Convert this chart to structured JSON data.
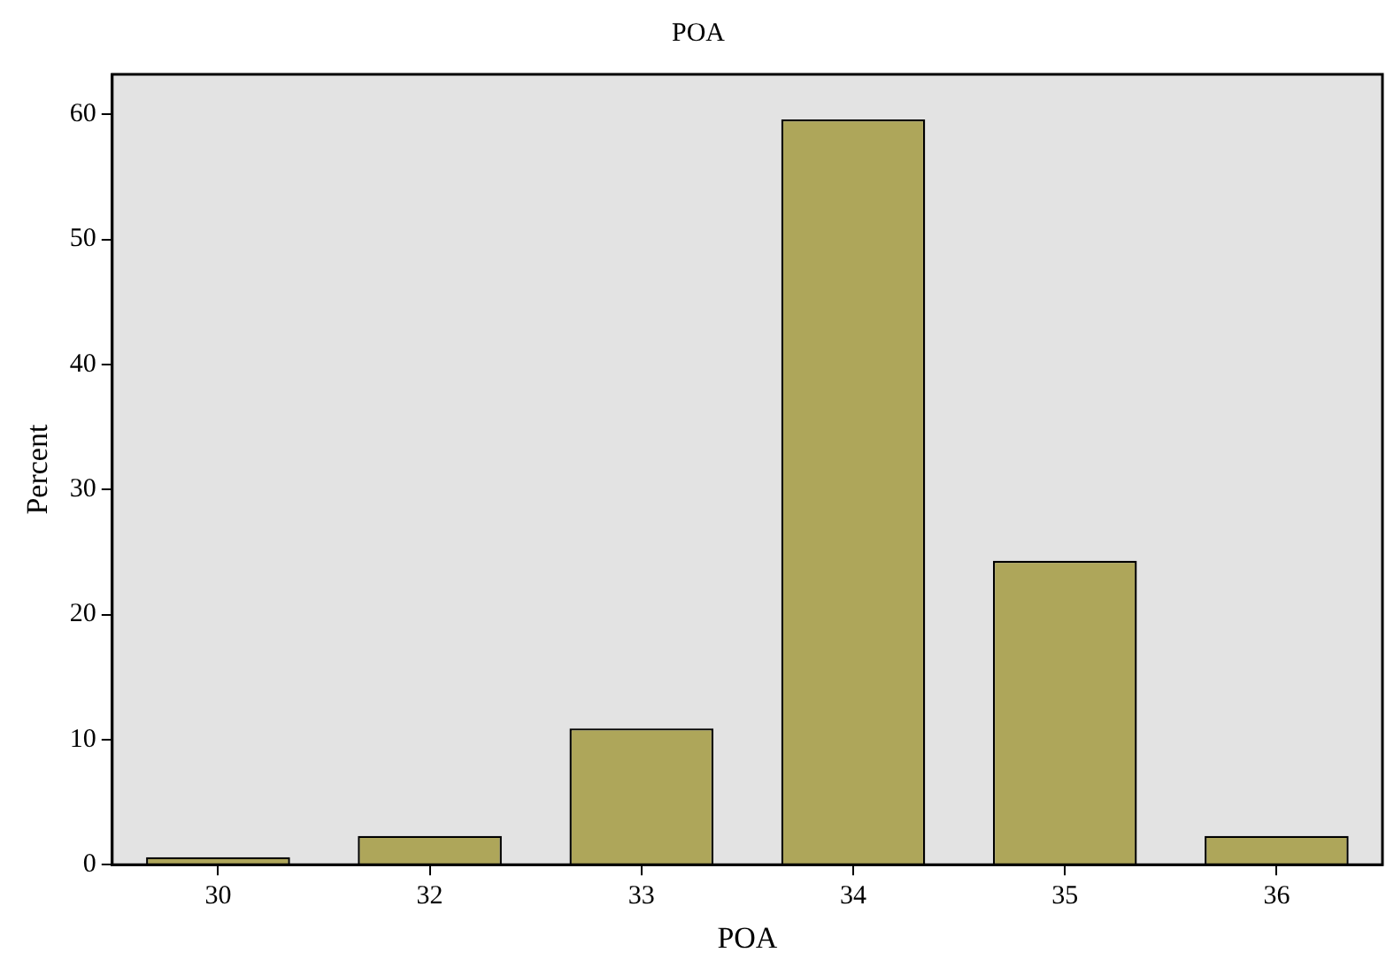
{
  "chart_data": {
    "type": "bar",
    "title": "POA",
    "xlabel": "POA",
    "ylabel": "Percent",
    "categories": [
      "30",
      "32",
      "33",
      "34",
      "35",
      "36"
    ],
    "values": [
      0.6,
      2.3,
      10.9,
      59.6,
      24.3,
      2.3
    ],
    "color": "#aea65a",
    "ylim": [
      0,
      63.2
    ],
    "yticks": [
      0,
      10,
      20,
      30,
      40,
      50,
      60
    ],
    "grid": false,
    "legend": false
  }
}
